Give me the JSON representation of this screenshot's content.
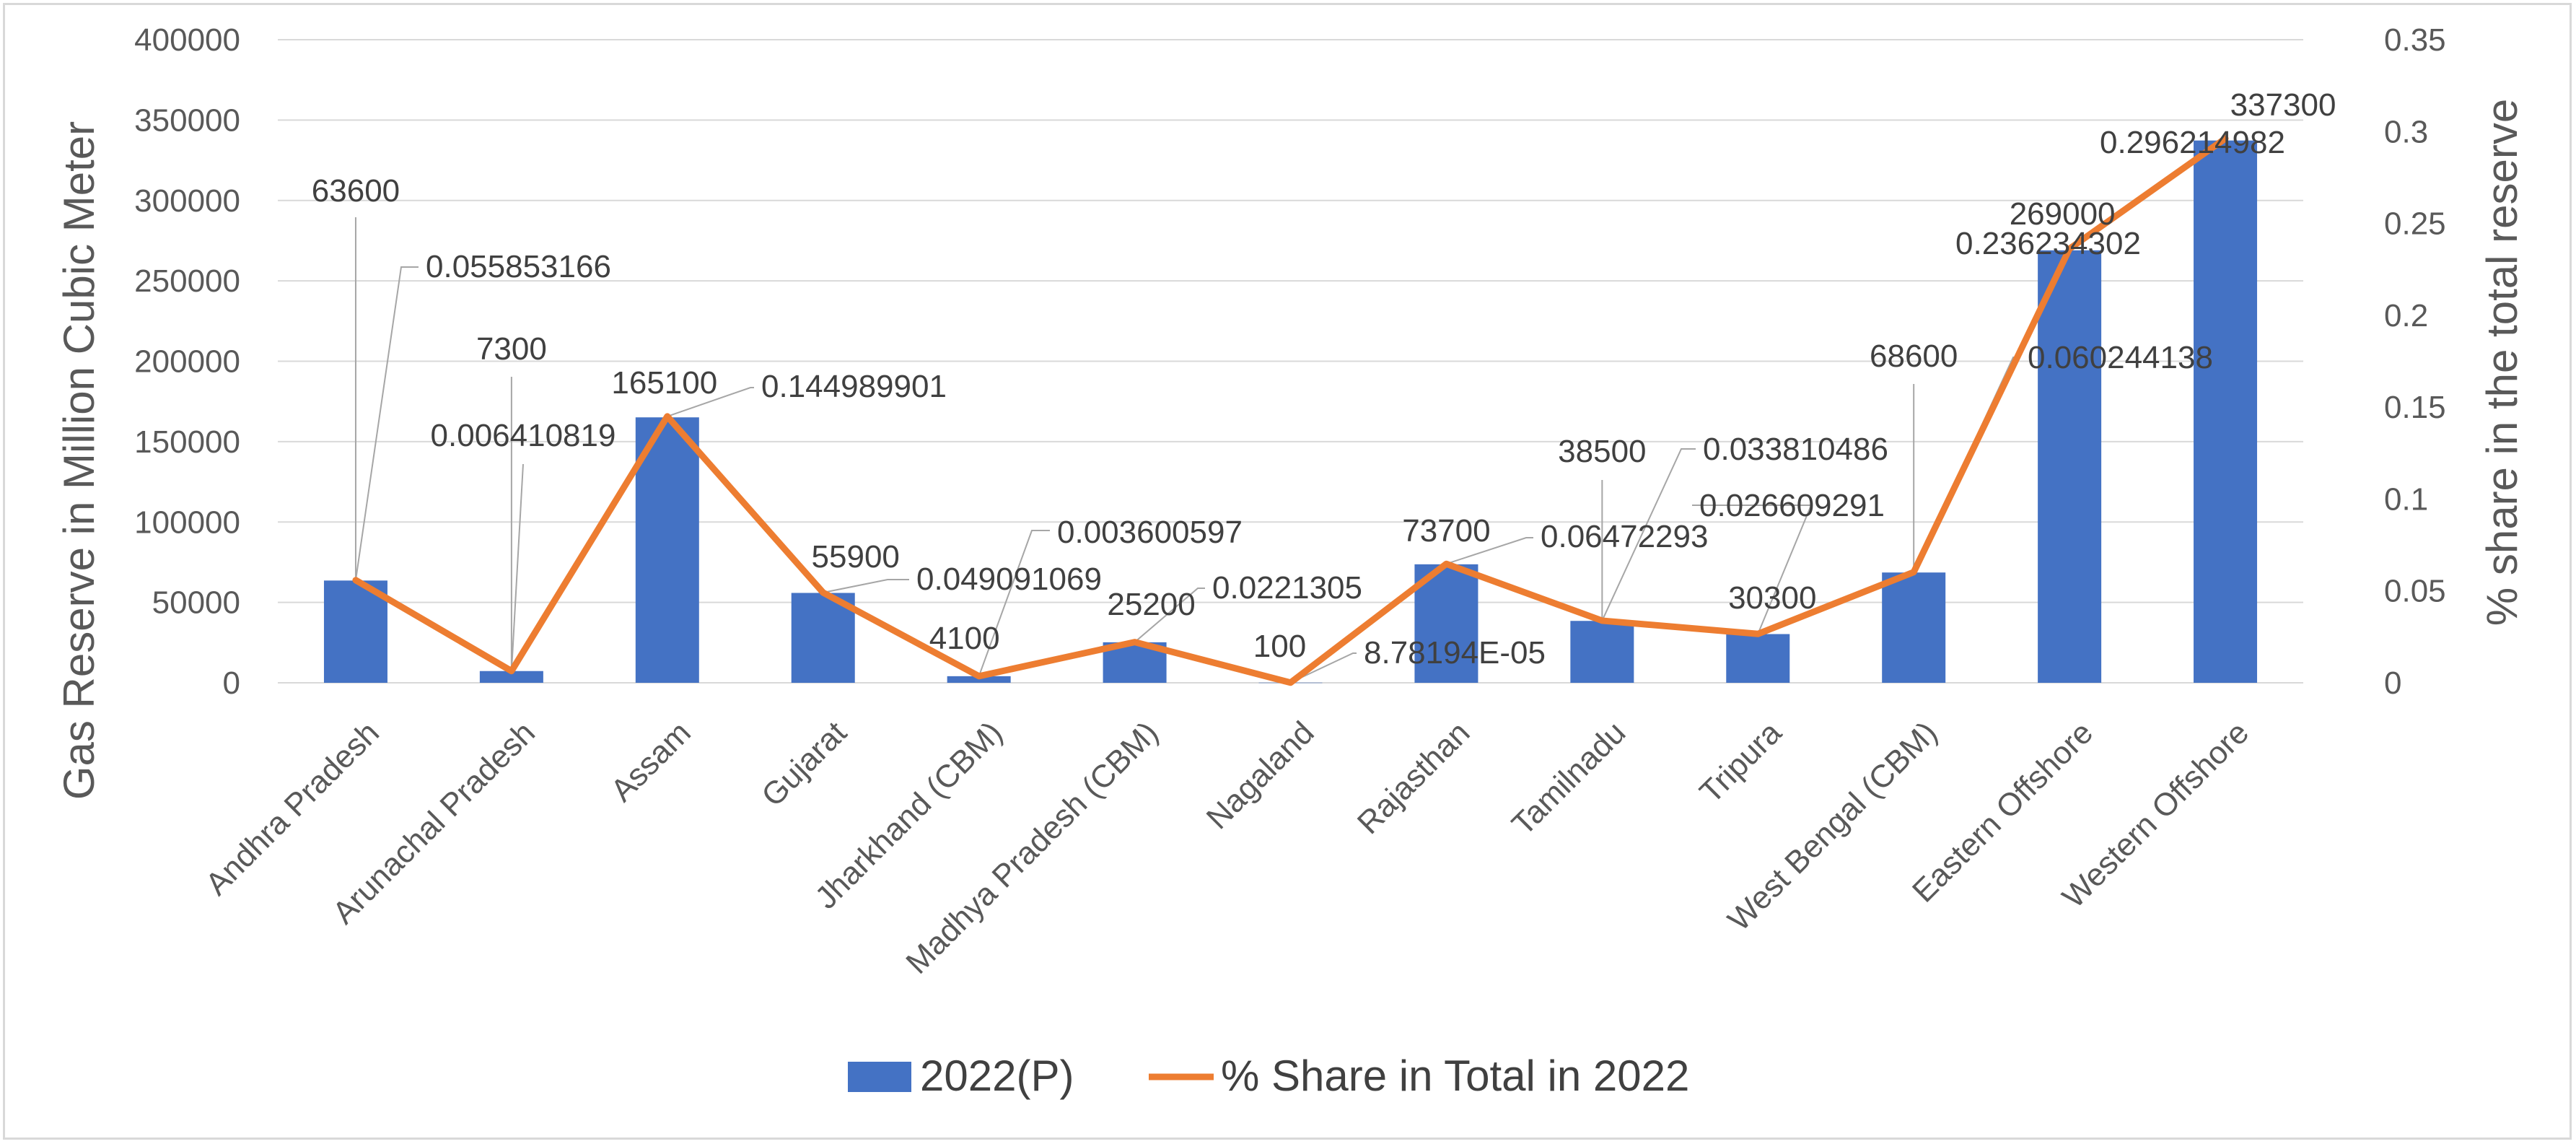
{
  "chart_data": {
    "type": "bar",
    "categories": [
      "Andhra Pradesh",
      "Arunachal Pradesh",
      "Assam",
      "Gujarat",
      "Jharkhand (CBM)",
      "Madhya Pradesh (CBM)",
      "Nagaland",
      "Rajasthan",
      "Tamilnadu",
      "Tripura",
      "West Bengal (CBM)",
      "Eastern Offshore",
      "Western Offshore"
    ],
    "series": [
      {
        "name": "2022(P)",
        "type": "bar",
        "axis": "left",
        "color": "#4472C4",
        "values": [
          63600,
          7300,
          165100,
          55900,
          4100,
          25200,
          100,
          73700,
          38500,
          30300,
          68600,
          269000,
          337300
        ],
        "labels": [
          "63600",
          "7300",
          "165100",
          "55900",
          "4100",
          "25200",
          "100",
          "73700",
          "38500",
          "30300",
          "68600",
          "269000",
          "337300"
        ]
      },
      {
        "name": "% Share in Total in 2022",
        "type": "line",
        "axis": "right",
        "color": "#ED7D31",
        "values": [
          0.055853166,
          0.006410819,
          0.144989901,
          0.049091069,
          0.003600597,
          0.0221305,
          8.78194e-05,
          0.06472293,
          0.033810486,
          0.026609291,
          0.060244138,
          0.236234302,
          0.296214982
        ],
        "labels": [
          "0.055853166",
          "0.006410819",
          "0.144989901",
          "0.049091069",
          "0.003600597",
          "0.0221305",
          "8.78194E-05",
          "0.06472293",
          "0.033810486",
          "0.026609291",
          "0.060244138",
          "0.236234302",
          "0.296214982"
        ]
      }
    ],
    "ylabel": "Gas Reserve in Million Cubic Meter",
    "y2label": "% share in the total reserve",
    "ylim": [
      0,
      400000
    ],
    "y2lim": [
      0,
      0.35
    ],
    "yticks": [
      "0",
      "50000",
      "100000",
      "150000",
      "200000",
      "250000",
      "300000",
      "350000",
      "400000"
    ],
    "y2ticks": [
      "0",
      "0.05",
      "0.1",
      "0.15",
      "0.2",
      "0.25",
      "0.3",
      "0.35"
    ],
    "grid": true,
    "legend": "bottom"
  }
}
